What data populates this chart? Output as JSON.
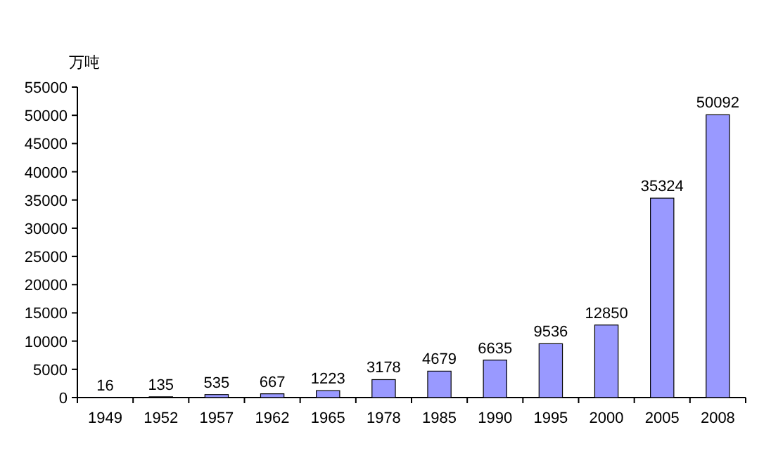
{
  "chart_data": {
    "type": "bar",
    "ylabel": "万吨",
    "categories": [
      "1949",
      "1952",
      "1957",
      "1962",
      "1965",
      "1978",
      "1985",
      "1990",
      "1995",
      "2000",
      "2005",
      "2008"
    ],
    "values": [
      16,
      135,
      535,
      667,
      1223,
      3178,
      4679,
      6635,
      9536,
      12850,
      35324,
      50092
    ],
    "color": "#9999ff",
    "ylim": [
      0,
      55000
    ],
    "yticks": [
      0,
      5000,
      10000,
      15000,
      20000,
      25000,
      30000,
      35000,
      40000,
      45000,
      50000,
      55000
    ],
    "data_labels": true
  }
}
